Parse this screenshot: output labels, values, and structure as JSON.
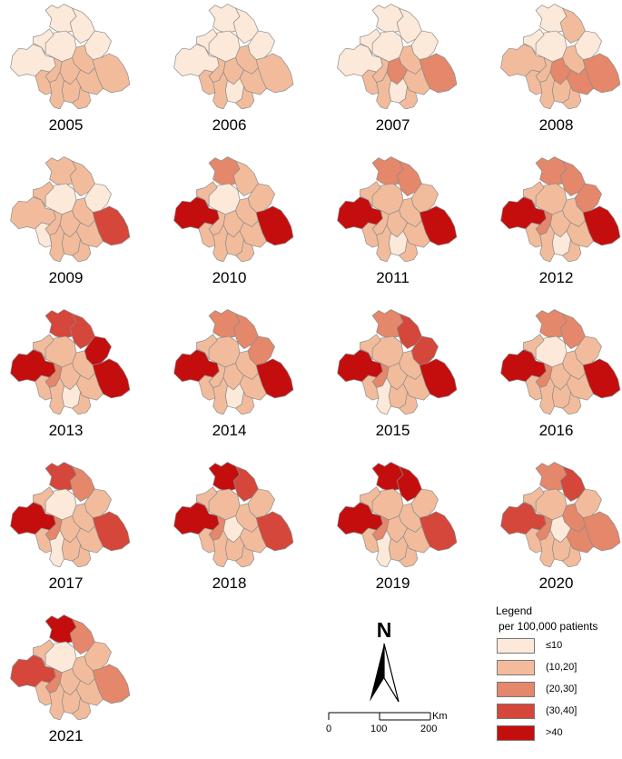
{
  "colors": {
    "le10": "#fde9d9",
    "c10_20": "#f2bc9c",
    "c20_30": "#e4876a",
    "c30_40": "#d4473a",
    "gt40": "#c40e0e"
  },
  "map_panels": [
    {
      "year": "2005",
      "regions": [
        "le10",
        "le10",
        "le10",
        "le10",
        "le10",
        "le10",
        "c10_20",
        "c10_20",
        "c10_20",
        "c10_20",
        "c10_20",
        "c10_20",
        "c10_20",
        "c10_20",
        "c10_20"
      ]
    },
    {
      "year": "2006",
      "regions": [
        "le10",
        "le10",
        "le10",
        "le10",
        "le10",
        "le10",
        "c10_20",
        "c10_20",
        "c10_20",
        "le10",
        "c10_20",
        "c10_20",
        "c10_20",
        "c10_20",
        "c10_20"
      ]
    },
    {
      "year": "2007",
      "regions": [
        "le10",
        "le10",
        "le10",
        "le10",
        "le10",
        "le10",
        "c10_20",
        "c20_30",
        "c10_20",
        "le10",
        "c20_30",
        "c10_20",
        "c10_20",
        "c10_20",
        "c10_20"
      ]
    },
    {
      "year": "2008",
      "regions": [
        "c10_20",
        "le10",
        "le10",
        "le10",
        "c10_20",
        "le10",
        "c10_20",
        "c20_30",
        "c10_20",
        "c10_20",
        "c20_30",
        "c20_30",
        "c10_20",
        "c10_20",
        "c10_20"
      ]
    },
    {
      "year": "2009",
      "regions": [
        "c10_20",
        "c10_20",
        "le10",
        "c10_20",
        "c10_20",
        "le10",
        "c10_20",
        "c10_20",
        "c10_20",
        "c10_20",
        "c30_40",
        "c10_20",
        "c10_20",
        "c10_20",
        "le10"
      ]
    },
    {
      "year": "2010",
      "regions": [
        "gt40",
        "c20_30",
        "le10",
        "c10_20",
        "c10_20",
        "c10_20",
        "c10_20",
        "c10_20",
        "c10_20",
        "c10_20",
        "gt40",
        "c10_20",
        "c10_20",
        "c10_20",
        "c10_20"
      ]
    },
    {
      "year": "2011",
      "regions": [
        "gt40",
        "c20_30",
        "c10_20",
        "c10_20",
        "c20_30",
        "c10_20",
        "c10_20",
        "c10_20",
        "c10_20",
        "le10",
        "gt40",
        "c10_20",
        "c10_20",
        "c10_20",
        "c10_20"
      ]
    },
    {
      "year": "2012",
      "regions": [
        "gt40",
        "c20_30",
        "c10_20",
        "c10_20",
        "c20_30",
        "c20_30",
        "c10_20",
        "c10_20",
        "c20_30",
        "le10",
        "gt40",
        "c10_20",
        "c10_20",
        "c10_20",
        "c10_20"
      ]
    },
    {
      "year": "2013",
      "regions": [
        "gt40",
        "c30_40",
        "c10_20",
        "c10_20",
        "c30_40",
        "gt40",
        "c10_20",
        "c10_20",
        "c20_30",
        "le10",
        "gt40",
        "c10_20",
        "c10_20",
        "c10_20",
        "c10_20"
      ]
    },
    {
      "year": "2014",
      "regions": [
        "gt40",
        "c20_30",
        "c10_20",
        "c10_20",
        "c20_30",
        "c20_30",
        "c10_20",
        "c10_20",
        "c10_20",
        "le10",
        "gt40",
        "c10_20",
        "c10_20",
        "c10_20",
        "c10_20"
      ]
    },
    {
      "year": "2015",
      "regions": [
        "gt40",
        "c20_30",
        "c10_20",
        "c10_20",
        "c30_40",
        "c30_40",
        "c10_20",
        "c10_20",
        "c20_30",
        "c10_20",
        "gt40",
        "c10_20",
        "le10",
        "c10_20",
        "c10_20"
      ]
    },
    {
      "year": "2016",
      "regions": [
        "gt40",
        "c20_30",
        "le10",
        "c10_20",
        "c20_30",
        "c10_20",
        "c10_20",
        "c10_20",
        "c20_30",
        "c10_20",
        "gt40",
        "c10_20",
        "c10_20",
        "c10_20",
        "c10_20"
      ]
    },
    {
      "year": "2017",
      "regions": [
        "gt40",
        "c30_40",
        "le10",
        "c10_20",
        "c20_30",
        "c10_20",
        "c10_20",
        "c10_20",
        "c20_30",
        "c10_20",
        "c30_40",
        "c10_20",
        "le10",
        "c10_20",
        "c10_20"
      ]
    },
    {
      "year": "2018",
      "regions": [
        "gt40",
        "gt40",
        "c10_20",
        "c10_20",
        "c30_40",
        "c10_20",
        "c10_20",
        "le10",
        "c20_30",
        "c10_20",
        "c30_40",
        "c10_20",
        "c10_20",
        "c10_20",
        "c10_20"
      ]
    },
    {
      "year": "2019",
      "regions": [
        "gt40",
        "gt40",
        "c10_20",
        "c10_20",
        "gt40",
        "c10_20",
        "c10_20",
        "c10_20",
        "c20_30",
        "c10_20",
        "c30_40",
        "c10_20",
        "le10",
        "c10_20",
        "c10_20"
      ]
    },
    {
      "year": "2020",
      "regions": [
        "c30_40",
        "c20_30",
        "c10_20",
        "c10_20",
        "c30_40",
        "c10_20",
        "c20_30",
        "le10",
        "c20_30",
        "c10_20",
        "c20_30",
        "c20_30",
        "c10_20",
        "c10_20",
        "c10_20"
      ]
    },
    {
      "year": "2021",
      "regions": [
        "c30_40",
        "gt40",
        "le10",
        "c10_20",
        "c20_30",
        "c10_20",
        "c10_20",
        "c10_20",
        "c20_30",
        "c10_20",
        "c20_30",
        "c10_20",
        "c10_20",
        "c10_20",
        "c10_20"
      ]
    }
  ],
  "legend": {
    "title": "Legend",
    "subtitle": "per 100,000 patients",
    "items": [
      {
        "label": "≤10",
        "class": "le10"
      },
      {
        "label": "(10,20]",
        "class": "c10_20"
      },
      {
        "label": "(20,30]",
        "class": "c20_30"
      },
      {
        "label": "(30,40]",
        "class": "c30_40"
      },
      {
        "label": ">40",
        "class": "gt40"
      }
    ]
  },
  "north_arrow": {
    "letter": "N"
  },
  "scale_bar": {
    "ticks": [
      "0",
      "100",
      "200"
    ],
    "unit": "Km"
  }
}
